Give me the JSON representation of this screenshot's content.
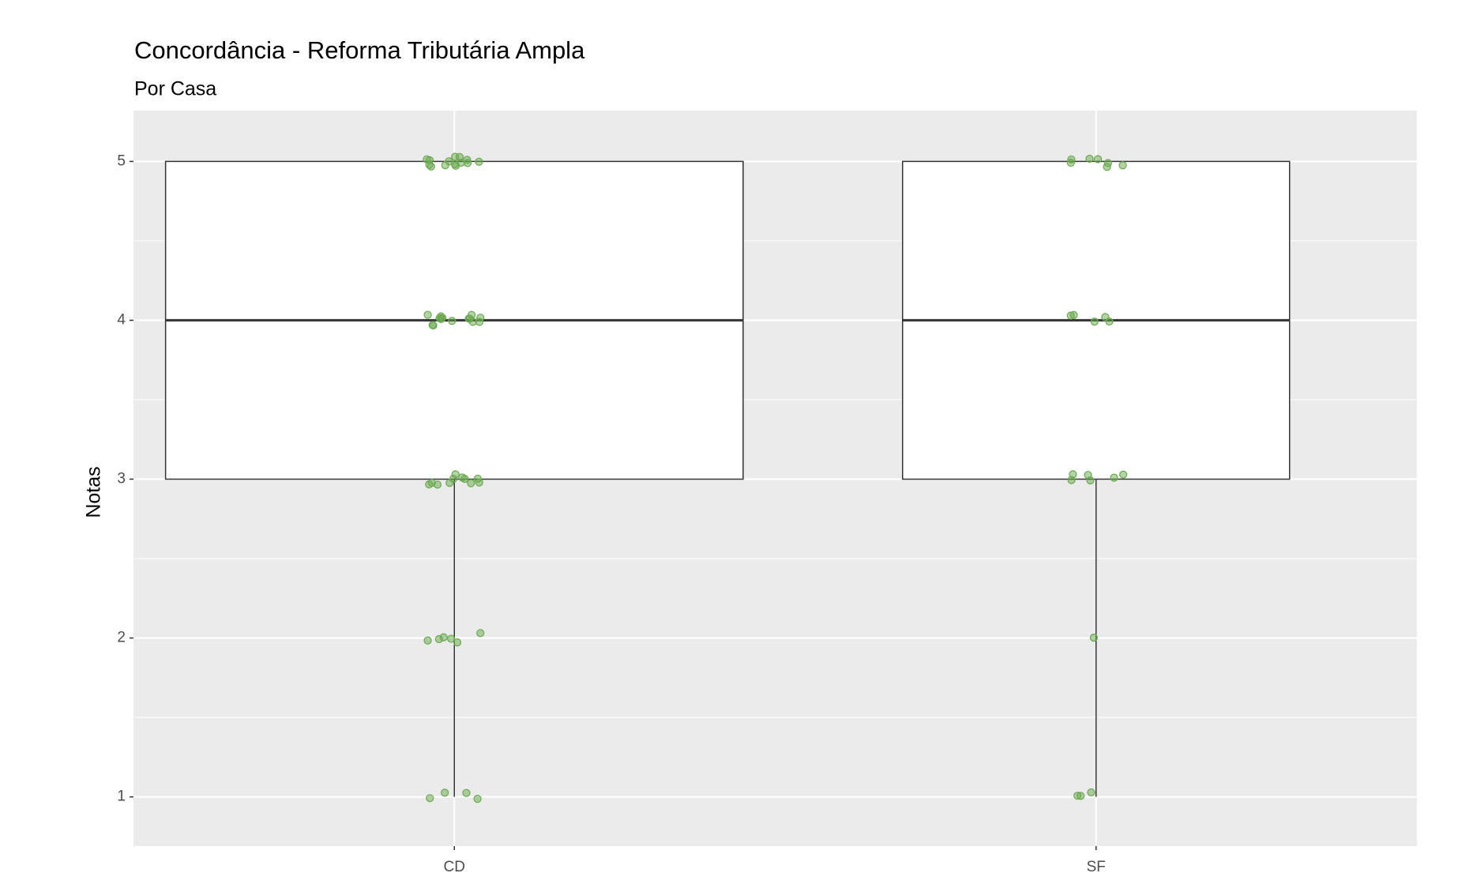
{
  "chart_data": {
    "type": "boxplot",
    "title": "Concordância - Reforma Tributária Ampla",
    "subtitle": "Por Casa",
    "y_label": "Notas",
    "categories": [
      "CD",
      "SF"
    ],
    "boxes": [
      {
        "min": 1,
        "q1": 3,
        "median": 4,
        "q3": 5,
        "max": 5
      },
      {
        "min": 1,
        "q1": 3,
        "median": 4,
        "q3": 5,
        "max": 5
      }
    ],
    "points": [
      [
        5,
        5,
        5,
        5,
        5,
        5,
        5,
        5,
        5,
        5,
        5,
        5,
        5,
        5,
        4,
        4,
        4,
        4,
        4,
        4,
        4,
        4,
        4,
        4,
        4,
        4,
        4,
        4,
        3,
        3,
        3,
        3,
        3,
        3,
        3,
        3,
        3,
        3,
        3,
        2,
        2,
        2,
        2,
        2,
        2,
        1,
        1,
        1,
        1
      ],
      [
        5,
        5,
        5,
        5,
        5,
        5,
        5,
        4,
        4,
        4,
        4,
        4,
        3,
        3,
        3,
        3,
        3,
        3,
        2,
        1,
        1,
        1
      ]
    ],
    "point_color": "#6aa84f",
    "ylim": [
      0.69,
      5.32
    ],
    "yticks": [
      1,
      2,
      3,
      4,
      5
    ],
    "grid": true
  }
}
